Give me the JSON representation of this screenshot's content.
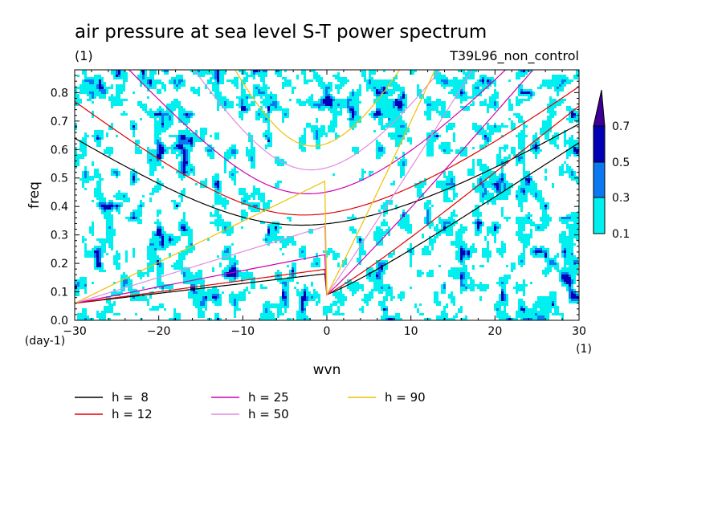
{
  "chart_data": {
    "type": "heatmap",
    "title": "air pressure at sea level S-T power spectrum",
    "unit_label": "(1)",
    "run_name": "T39L96_non_control",
    "xlabel": "wvn",
    "ylabel": "freq",
    "x_unit": "(1)",
    "y_unit": "(day-1)",
    "xlim": [
      -30,
      30
    ],
    "ylim": [
      0,
      0.88
    ],
    "x_ticks": [
      -30,
      -20,
      -10,
      0,
      10,
      20,
      30
    ],
    "y_ticks": [
      0.0,
      0.1,
      0.2,
      0.3,
      0.4,
      0.5,
      0.6,
      0.7,
      0.8
    ],
    "x_tick_labels": [
      "-30",
      "-20",
      "-10",
      "0",
      "10",
      "20",
      "30"
    ],
    "y_tick_labels": [
      "0.0",
      "0.1",
      "0.2",
      "0.3",
      "0.4",
      "0.5",
      "0.6",
      "0.7",
      "0.8"
    ],
    "colorbar": {
      "levels": [
        0.1,
        0.3,
        0.5,
        0.7
      ],
      "level_labels": [
        "0.1",
        "0.3",
        "0.5",
        "0.7"
      ],
      "colors": [
        "#00f0f0",
        "#0a78f0",
        "#0000b4",
        "#3c0096"
      ]
    },
    "dispersion_curves": [
      {
        "name": "h =  8",
        "h": 8,
        "color": "#000000"
      },
      {
        "name": "h = 12",
        "h": 12,
        "color": "#e00000"
      },
      {
        "name": "h = 25",
        "h": 25,
        "color": "#d000b0"
      },
      {
        "name": "h = 50",
        "h": 50,
        "color": "#e08ce0"
      },
      {
        "name": "h = 90",
        "h": 90,
        "color": "#f0c000"
      }
    ]
  }
}
